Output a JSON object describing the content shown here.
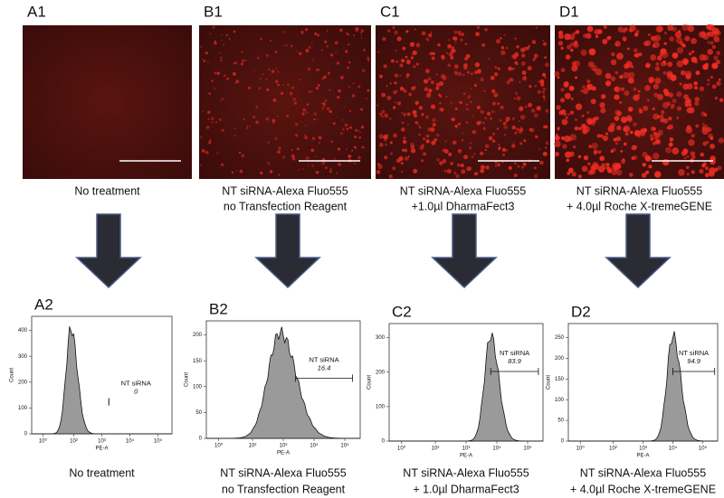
{
  "panels": [
    {
      "image_label": "A1",
      "caption": [
        "No treatment"
      ],
      "histogram_label": "A2",
      "gate_name": "NT siRNA",
      "gate_value": 0,
      "x_axis_title": "PE-A",
      "y_axis_title": "Count",
      "yticks": [
        0,
        100,
        200,
        300,
        400
      ],
      "xticks": [
        "10⁰",
        "10²",
        "10³",
        "10⁴",
        "10⁵"
      ],
      "bottom_caption": [
        "No treatment"
      ]
    },
    {
      "image_label": "B1",
      "caption": [
        "NT siRNA-Alexa Fluo555",
        "no Transfection Reagent"
      ],
      "histogram_label": "B2",
      "gate_name": "NT siRNA",
      "gate_value": 16.4,
      "x_axis_title": "PE-A",
      "y_axis_title": "Count",
      "yticks": [
        0,
        50,
        100,
        150,
        200
      ],
      "xticks": [
        "10⁰",
        "10²",
        "10³",
        "10⁴",
        "10⁵"
      ],
      "bottom_caption": [
        "NT siRNA-Alexa Fluo555",
        "no Transfection Reagent"
      ]
    },
    {
      "image_label": "C1",
      "caption": [
        "NT siRNA-Alexa Fluo555",
        "+1.0µl DharmaFect3"
      ],
      "histogram_label": "C2",
      "gate_name": "NT siRNA",
      "gate_value": 83.9,
      "x_axis_title": "PE-A",
      "y_axis_title": "Count",
      "yticks": [
        0,
        100,
        200,
        300
      ],
      "xticks": [
        "10⁰",
        "10²",
        "10³",
        "10⁴",
        "10⁵"
      ],
      "bottom_caption": [
        "NT siRNA-Alexa Fluo555",
        "+ 1.0µl DharmaFect3"
      ]
    },
    {
      "image_label": "D1",
      "caption": [
        "NT siRNA-Alexa Fluo555",
        "+ 4.0µl Roche X-tremeGENE"
      ],
      "histogram_label": "D2",
      "gate_name": "NT siRNA",
      "gate_value": 94.9,
      "x_axis_title": "PE-A",
      "y_axis_title": "Count",
      "yticks": [
        0,
        50,
        100,
        150,
        200,
        250
      ],
      "xticks": [
        "10⁰",
        "10²",
        "10³",
        "10⁴",
        "10⁵"
      ],
      "bottom_caption": [
        "NT siRNA-Alexa Fluo555",
        "+ 4.0µl Roche X-tremeGENE"
      ]
    }
  ]
}
